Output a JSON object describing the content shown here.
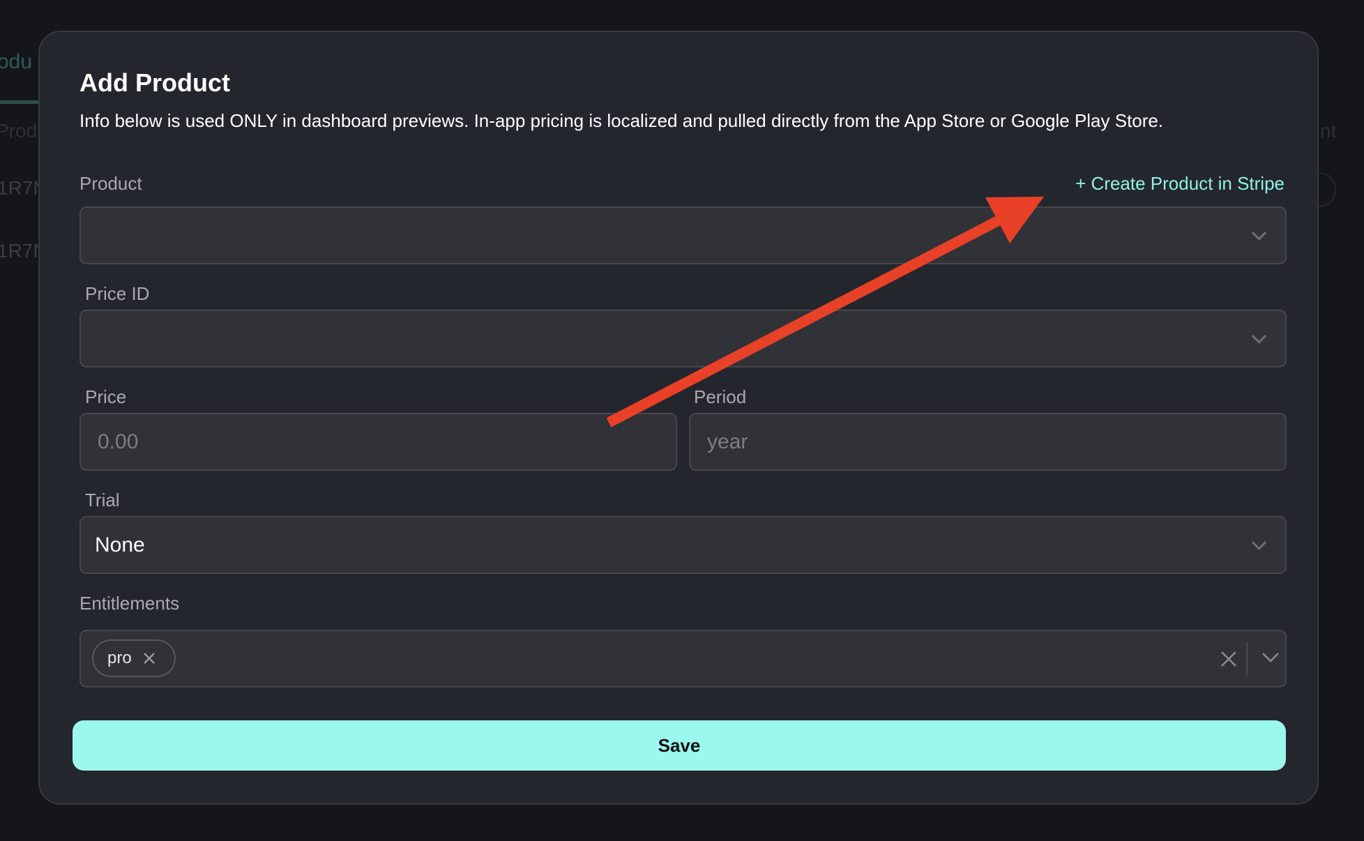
{
  "background": {
    "tab_active_fragment": "odu",
    "column_header_fragment": "Produ",
    "column_header_right_fragment": "nt",
    "row_ids": [
      "1R7N",
      "1R7N"
    ]
  },
  "modal": {
    "title": "Add Product",
    "description": "Info below is used ONLY in dashboard previews. In-app pricing is localized and pulled directly from the App Store or Google Play Store.",
    "create_link": "+ Create Product in Stripe",
    "product": {
      "label": "Product",
      "value": ""
    },
    "price_id": {
      "label": "Price ID",
      "value": ""
    },
    "price": {
      "label": "Price",
      "placeholder": "0.00"
    },
    "period": {
      "label": "Period",
      "placeholder": "year"
    },
    "trial": {
      "label": "Trial",
      "value": "None"
    },
    "entitlements": {
      "label": "Entitlements",
      "chips": [
        "pro"
      ]
    },
    "save_label": "Save"
  },
  "colors": {
    "accent": "#9cf8ef",
    "link": "#8ff2e6",
    "annotation_arrow": "#e84127"
  }
}
